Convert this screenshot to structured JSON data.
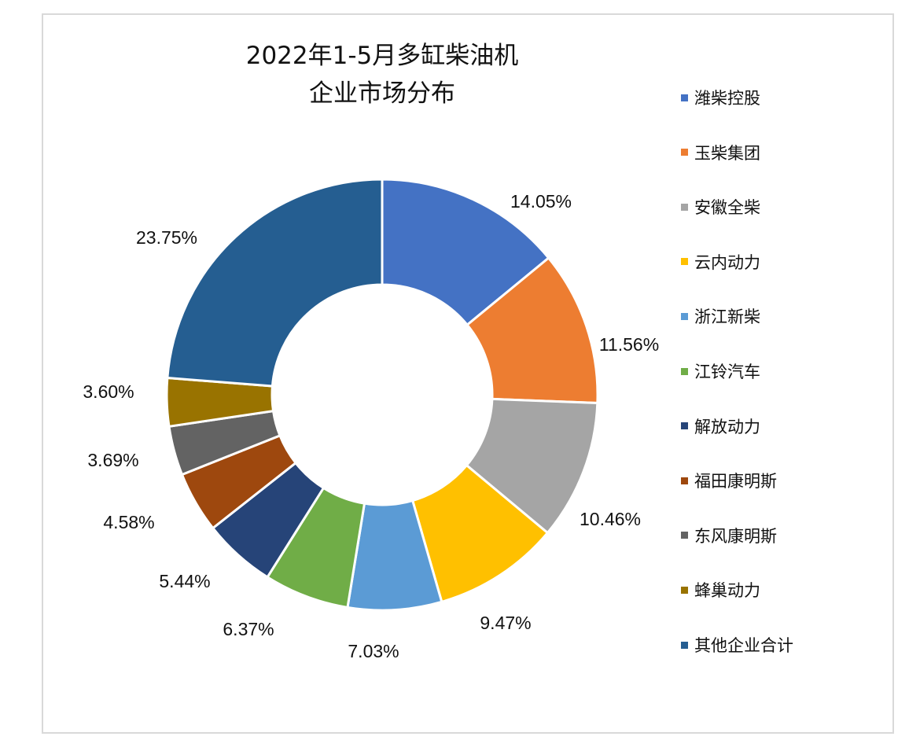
{
  "chart_data": {
    "type": "pie",
    "title": [
      "2022年1-5月多缸柴油机",
      "企业市场分布"
    ],
    "donut": true,
    "legend_position": "right",
    "slices": [
      {
        "name": "潍柴控股",
        "value": 14.05,
        "label": "14.05%",
        "color": "#4472C4"
      },
      {
        "name": "玉柴集团",
        "value": 11.56,
        "label": "11.56%",
        "color": "#ED7D31"
      },
      {
        "name": "安徽全柴",
        "value": 10.46,
        "label": "10.46%",
        "color": "#A5A5A5"
      },
      {
        "name": "云内动力",
        "value": 9.47,
        "label": "9.47%",
        "color": "#FFC000"
      },
      {
        "name": "浙江新柴",
        "value": 7.03,
        "label": "7.03%",
        "color": "#5B9BD5"
      },
      {
        "name": "江铃汽车",
        "value": 6.37,
        "label": "6.37%",
        "color": "#70AD47"
      },
      {
        "name": "解放动力",
        "value": 5.44,
        "label": "5.44%",
        "color": "#264478"
      },
      {
        "name": "福田康明斯",
        "value": 4.58,
        "label": "4.58%",
        "color": "#9E480E"
      },
      {
        "name": "东风康明斯",
        "value": 3.69,
        "label": "3.69%",
        "color": "#636363"
      },
      {
        "name": "蜂巢动力",
        "value": 3.6,
        "label": "3.60%",
        "color": "#997300"
      },
      {
        "name": "其他企业合计",
        "value": 23.75,
        "label": "23.75%",
        "color": "#255E91"
      }
    ]
  }
}
